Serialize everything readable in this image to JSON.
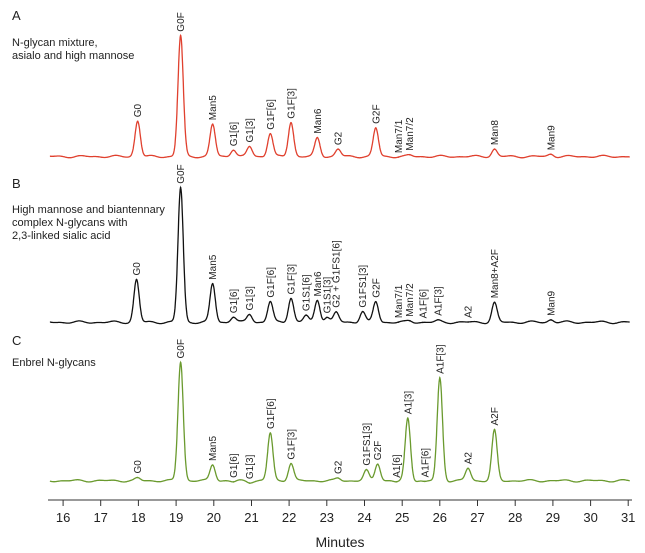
{
  "chart_data": [
    {
      "type": "line",
      "panel": "A",
      "title": "N-glycan mixture,\nasialo and high mannose",
      "color": "#e0402e",
      "baseline": 0.02,
      "peaks": [
        {
          "x": 17.98,
          "y": 0.31,
          "label": "G0"
        },
        {
          "x": 19.12,
          "y": 1.0,
          "label": "G0F"
        },
        {
          "x": 19.97,
          "y": 0.28,
          "label": "Man5"
        },
        {
          "x": 20.52,
          "y": 0.08,
          "label": "G1[6]"
        },
        {
          "x": 20.95,
          "y": 0.1,
          "label": "G1[3]"
        },
        {
          "x": 21.5,
          "y": 0.21,
          "label": "G1F[6]"
        },
        {
          "x": 22.05,
          "y": 0.3,
          "label": "G1F[3]"
        },
        {
          "x": 22.75,
          "y": 0.17,
          "label": "Man6"
        },
        {
          "x": 23.3,
          "y": 0.08,
          "label": "G2"
        },
        {
          "x": 24.3,
          "y": 0.25,
          "label": "G2F"
        },
        {
          "x": 24.9,
          "y": 0.02,
          "label": "Man7/1"
        },
        {
          "x": 25.2,
          "y": 0.03,
          "label": "Man7/2"
        },
        {
          "x": 27.45,
          "y": 0.08,
          "label": "Man8"
        },
        {
          "x": 28.95,
          "y": 0.04,
          "label": "Man9"
        }
      ]
    },
    {
      "type": "line",
      "panel": "B",
      "title": "High mannose and biantennary\ncomplex N-glycans with\n2,3-linked sialic acid",
      "color": "#111111",
      "baseline": 0.02,
      "peaks": [
        {
          "x": 17.95,
          "y": 0.33,
          "label": "G0"
        },
        {
          "x": 19.12,
          "y": 1.0,
          "label": "G0F"
        },
        {
          "x": 19.97,
          "y": 0.3,
          "label": "Man5"
        },
        {
          "x": 20.52,
          "y": 0.06,
          "label": "G1[6]"
        },
        {
          "x": 20.95,
          "y": 0.08,
          "label": "G1[3]"
        },
        {
          "x": 21.5,
          "y": 0.17,
          "label": "G1F[6]"
        },
        {
          "x": 22.05,
          "y": 0.2,
          "label": "G1F[3]"
        },
        {
          "x": 22.45,
          "y": 0.07,
          "label": "G1S1[6]"
        },
        {
          "x": 22.75,
          "y": 0.18,
          "label": "Man6"
        },
        {
          "x": 23.0,
          "y": 0.06,
          "label": "G1S1[3]"
        },
        {
          "x": 23.25,
          "y": 0.09,
          "label": "G2 + G1FS1[6]"
        },
        {
          "x": 23.95,
          "y": 0.1,
          "label": "G1FS1[3]"
        },
        {
          "x": 24.3,
          "y": 0.17,
          "label": "G2F"
        },
        {
          "x": 24.9,
          "y": 0.02,
          "label": "Man7/1"
        },
        {
          "x": 25.2,
          "y": 0.03,
          "label": "Man7/2"
        },
        {
          "x": 25.55,
          "y": 0.02,
          "label": "A1F[6]"
        },
        {
          "x": 25.95,
          "y": 0.03,
          "label": "A1F[3]"
        },
        {
          "x": 26.75,
          "y": 0.02,
          "label": "A2"
        },
        {
          "x": 27.45,
          "y": 0.16,
          "label": "Man8+A2F"
        },
        {
          "x": 28.95,
          "y": 0.04,
          "label": "Man9"
        }
      ]
    },
    {
      "type": "line",
      "panel": "C",
      "title": "Enbrel N-glycans",
      "color": "#6a9a2e",
      "baseline": 0.05,
      "peaks": [
        {
          "x": 17.98,
          "y": 0.07,
          "label": "G0"
        },
        {
          "x": 19.12,
          "y": 1.0,
          "label": "G0F"
        },
        {
          "x": 19.97,
          "y": 0.18,
          "label": "Man5"
        },
        {
          "x": 20.52,
          "y": 0.04,
          "label": "G1[6]"
        },
        {
          "x": 20.95,
          "y": 0.04,
          "label": "G1[3]"
        },
        {
          "x": 21.5,
          "y": 0.43,
          "label": "G1F[6]"
        },
        {
          "x": 22.05,
          "y": 0.19,
          "label": "G1F[3]"
        },
        {
          "x": 23.3,
          "y": 0.07,
          "label": "G2"
        },
        {
          "x": 24.05,
          "y": 0.13,
          "label": "G1FS1[3]"
        },
        {
          "x": 24.35,
          "y": 0.19,
          "label": "G2F"
        },
        {
          "x": 24.85,
          "y": 0.04,
          "label": "A1[6]"
        },
        {
          "x": 25.15,
          "y": 0.55,
          "label": "A1[3]"
        },
        {
          "x": 25.6,
          "y": 0.04,
          "label": "A1F[6]"
        },
        {
          "x": 26.0,
          "y": 0.87,
          "label": "A1F[3]"
        },
        {
          "x": 26.75,
          "y": 0.15,
          "label": "A2"
        },
        {
          "x": 27.45,
          "y": 0.45,
          "label": "A2F"
        }
      ]
    }
  ],
  "axis": {
    "xlabel": "Minutes",
    "xlim": [
      15.6,
      31.1
    ],
    "ticks": [
      "16",
      "17",
      "18",
      "19",
      "20",
      "21",
      "22",
      "23",
      "24",
      "25",
      "26",
      "27",
      "28",
      "29",
      "30",
      "31"
    ]
  }
}
